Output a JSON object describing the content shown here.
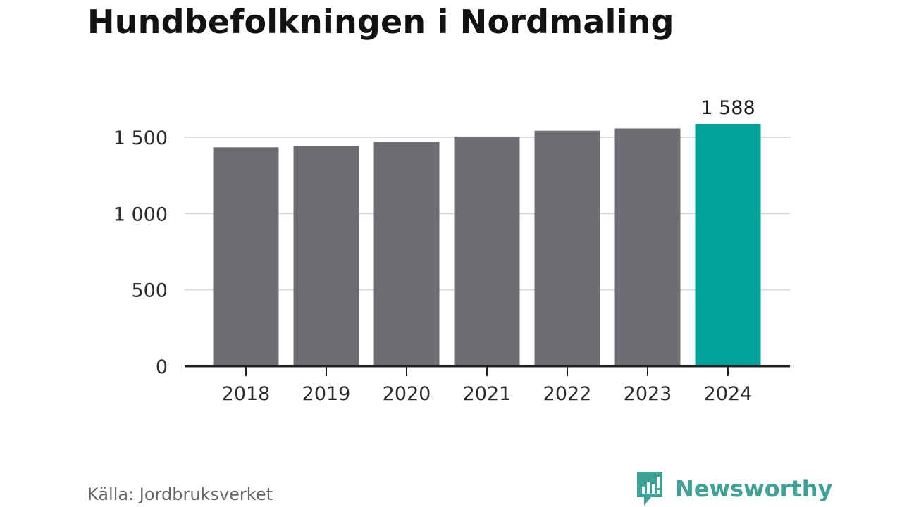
{
  "header": {
    "title": "Hundbefolkningen i Nordmaling"
  },
  "footer": {
    "source": "Källa: Jordbruksverket",
    "brand": "Newsworthy"
  },
  "colors": {
    "bar": "#6f6d73",
    "highlight": "#00a39a",
    "grid": "#d9d9d9",
    "axis": "#222222",
    "brand": "#3da397"
  },
  "chart_data": {
    "type": "bar",
    "title": "Hundbefolkningen i Nordmaling",
    "categories": [
      "2018",
      "2019",
      "2020",
      "2021",
      "2022",
      "2023",
      "2024"
    ],
    "values": [
      1434,
      1441,
      1470,
      1505,
      1543,
      1558,
      1588
    ],
    "highlight_index": 6,
    "data_labels": [
      {
        "index": 6,
        "text": "1 588"
      }
    ],
    "yticks": [
      0,
      500,
      1000,
      1500
    ],
    "ytick_labels": [
      "0",
      "500",
      "1 000",
      "1 500"
    ],
    "ylim": [
      0,
      1620
    ],
    "xlabel": "",
    "ylabel": "",
    "grid": true,
    "legend": "none"
  }
}
